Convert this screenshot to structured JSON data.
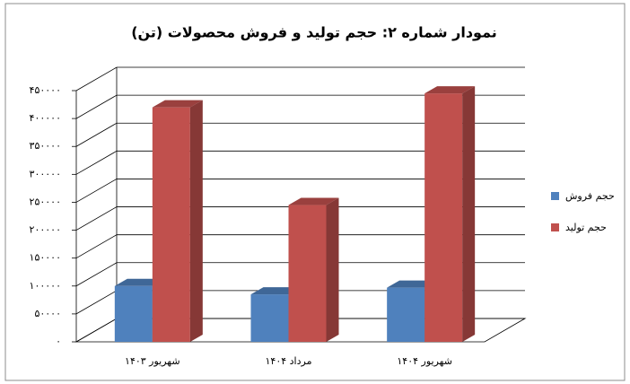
{
  "chart_data": {
    "type": "bar3d",
    "title": "نمودار شماره ۲: حجم تولید و فروش محصولات (تن)",
    "categories": [
      "شهریور ۱۴۰۳",
      "مرداد ۱۴۰۴",
      "شهریور ۱۴۰۴"
    ],
    "series": [
      {
        "name": "حجم فروش",
        "color": "#4f81bd",
        "values": [
          100000,
          85000,
          97000
        ]
      },
      {
        "name": "حجم تولید",
        "color": "#c0504d",
        "values": [
          420000,
          245000,
          445000
        ]
      }
    ],
    "ylim": [
      0,
      450000
    ],
    "yticks": [
      {
        "value": 0,
        "label": "۰"
      },
      {
        "value": 50000,
        "label": "۵۰۰۰۰"
      },
      {
        "value": 100000,
        "label": "۱۰۰۰۰۰"
      },
      {
        "value": 150000,
        "label": "۱۵۰۰۰۰"
      },
      {
        "value": 200000,
        "label": "۲۰۰۰۰۰"
      },
      {
        "value": 250000,
        "label": "۲۵۰۰۰۰"
      },
      {
        "value": 300000,
        "label": "۳۰۰۰۰۰"
      },
      {
        "value": 350000,
        "label": "۳۵۰۰۰۰"
      },
      {
        "value": 400000,
        "label": "۴۰۰۰۰۰"
      },
      {
        "value": 450000,
        "label": "۴۵۰۰۰۰"
      }
    ],
    "grid": true,
    "legend": "right"
  }
}
